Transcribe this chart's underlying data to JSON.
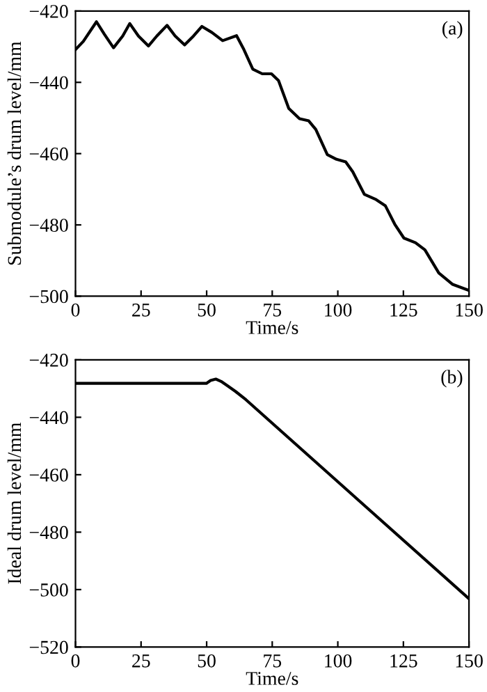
{
  "chart_data": [
    {
      "type": "line",
      "xlabel": "Time/s",
      "ylabel": "Submodule’s drum level/mm",
      "annotations": [
        "(a)"
      ],
      "x": [
        0,
        3,
        8,
        11,
        14.5,
        18,
        20.7,
        24,
        27.8,
        31,
        34.9,
        38,
        41.6,
        45,
        48.2,
        52,
        56.1,
        61.4,
        64,
        67.6,
        71.2,
        74.7,
        77.4,
        81.3,
        85.4,
        88.9,
        91.6,
        96,
        99.5,
        103,
        105.7,
        110.1,
        114.6,
        118.1,
        121.7,
        125.2,
        129.6,
        133.2,
        138.5,
        143.8,
        150
      ],
      "series": [
        {
          "color": "#000000",
          "values": [
            -430.8,
            -428.5,
            -423,
            -426.5,
            -430.3,
            -427,
            -423.5,
            -427,
            -429.8,
            -427,
            -424,
            -427,
            -429.5,
            -427,
            -424.3,
            -426,
            -428.3,
            -426.9,
            -430.5,
            -436.3,
            -437.6,
            -437.6,
            -439.5,
            -447.3,
            -450.2,
            -450.8,
            -453.2,
            -460.3,
            -461.6,
            -462.3,
            -465.1,
            -471.4,
            -472.9,
            -474.6,
            -479.8,
            -483.7,
            -485,
            -487,
            -493.5,
            -496.7,
            -498.4
          ]
        }
      ],
      "xlim": [
        0,
        150
      ],
      "ylim": [
        -500,
        -420
      ],
      "xticks": [
        0,
        25,
        50,
        75,
        100,
        125,
        150
      ],
      "yticks": [
        -500,
        -480,
        -460,
        -440,
        -420
      ],
      "grid": false,
      "legend": false
    },
    {
      "type": "line",
      "xlabel": "Time/s",
      "ylabel": "Ideal drum level/mm",
      "annotations": [
        "(b)"
      ],
      "x": [
        0,
        49.9,
        51.5,
        53.5,
        55.5,
        57.9,
        61,
        65,
        150
      ],
      "series": [
        {
          "color": "#000000",
          "values": [
            -428.2,
            -428.2,
            -427.2,
            -426.7,
            -427.5,
            -429,
            -431,
            -433.9,
            -503.2
          ]
        }
      ],
      "xlim": [
        0,
        150
      ],
      "ylim": [
        -520,
        -420
      ],
      "xticks": [
        0,
        25,
        50,
        75,
        100,
        125,
        150
      ],
      "yticks": [
        -520,
        -500,
        -480,
        -460,
        -440,
        -420
      ],
      "grid": false,
      "legend": false
    }
  ]
}
